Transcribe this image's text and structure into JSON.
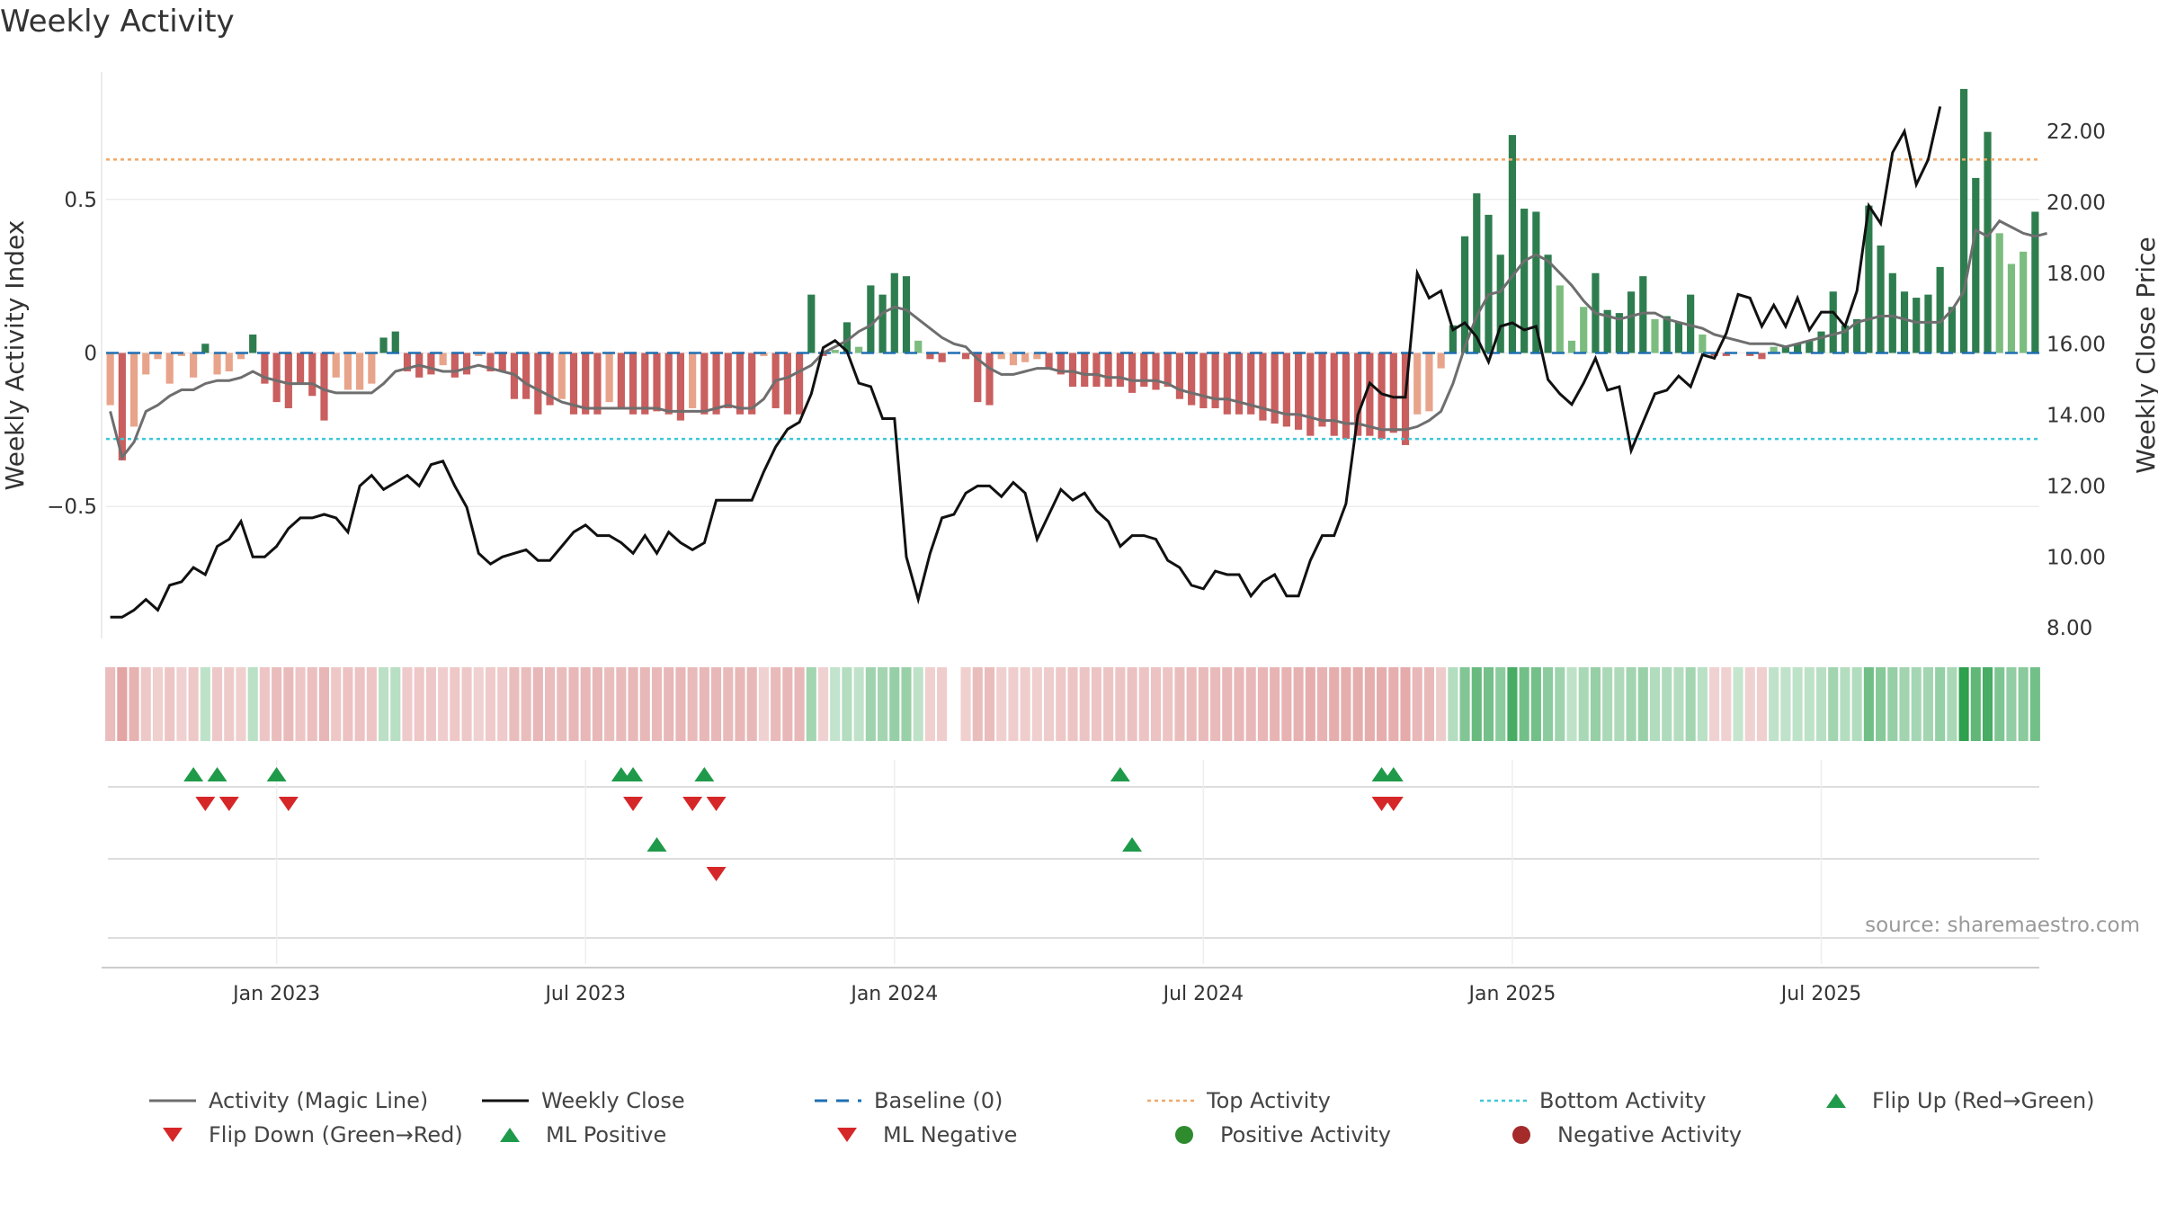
{
  "title": "Weekly Activity",
  "source": "source: sharemaestro.com",
  "colors": {
    "pos_dark": "#2e7d4f",
    "pos_light": "#7cbd7f",
    "neg_dark": "#c95f5f",
    "neg_light": "#e8a48b",
    "close": "#111111",
    "magic": "#6e6e6e",
    "baseline": "#1f6fb2",
    "top": "#f0a868",
    "bottom": "#3cc8d8",
    "up_marker": "#1f9a4a",
    "down_marker": "#d62728"
  },
  "legend": [
    [
      {
        "label": "Activity (Magic Line)",
        "kind": "line",
        "color": "#6e6e6e"
      },
      {
        "label": "Weekly Close",
        "kind": "line",
        "color": "#111111"
      },
      {
        "label": "Baseline (0)",
        "kind": "dash",
        "color": "#1f6fb2"
      },
      {
        "label": "Top Activity",
        "kind": "dot",
        "color": "#f0a868"
      },
      {
        "label": "Bottom Activity",
        "kind": "dot",
        "color": "#3cc8d8"
      },
      {
        "label": "Flip Up (Red→Green)",
        "kind": "up",
        "color": "#1f9a4a"
      }
    ],
    [
      {
        "label": "Flip Down (Green→Red)",
        "kind": "down",
        "color": "#d62728"
      },
      {
        "label": "ML Positive",
        "kind": "up",
        "color": "#1f9a4a"
      },
      {
        "label": "ML Negative",
        "kind": "down",
        "color": "#d62728"
      },
      {
        "label": "Positive Activity",
        "kind": "circle",
        "color": "#2e8b2e"
      },
      {
        "label": "Negative Activity",
        "kind": "circle",
        "color": "#a52a2a"
      }
    ]
  ],
  "chart_data": {
    "type": "bar",
    "title": "Weekly Activity",
    "ylabel": "Weekly Activity Index",
    "y2label": "Weekly Close Price",
    "ylim": [
      -0.93,
      0.93
    ],
    "y2lim": [
      7.7,
      23.8
    ],
    "yticks": [
      0.5,
      0,
      -0.5
    ],
    "ytick_labels": [
      "0.5",
      "0",
      "−0.5"
    ],
    "y2ticks": [
      8,
      10,
      12,
      14,
      16,
      18,
      20,
      22
    ],
    "y2tick_labels": [
      "8.00",
      "10.00",
      "12.00",
      "14.00",
      "16.00",
      "18.00",
      "20.00",
      "22.00"
    ],
    "xticks": [
      {
        "label": "Jan 2023",
        "week": 14
      },
      {
        "label": "Jul 2023",
        "week": 40
      },
      {
        "label": "Jan 2024",
        "week": 66
      },
      {
        "label": "Jul 2024",
        "week": 92
      },
      {
        "label": "Jan 2025",
        "week": 118
      },
      {
        "label": "Jul 2025",
        "week": 144
      }
    ],
    "top_activity": 0.63,
    "bottom_activity": -0.28,
    "gap_weeks": [
      71
    ],
    "activity": [
      -0.17,
      -0.35,
      -0.24,
      -0.07,
      -0.02,
      -0.1,
      -0.01,
      -0.08,
      0.03,
      -0.07,
      -0.06,
      -0.02,
      0.06,
      -0.1,
      -0.16,
      -0.18,
      -0.1,
      -0.14,
      -0.22,
      -0.08,
      -0.12,
      -0.12,
      -0.1,
      0.05,
      0.07,
      -0.06,
      -0.08,
      -0.07,
      -0.04,
      -0.08,
      -0.07,
      -0.01,
      -0.06,
      -0.06,
      -0.15,
      -0.15,
      -0.2,
      -0.17,
      -0.15,
      -0.2,
      -0.2,
      -0.2,
      -0.16,
      -0.18,
      -0.2,
      -0.2,
      -0.19,
      -0.2,
      -0.22,
      -0.18,
      -0.2,
      -0.2,
      -0.18,
      -0.2,
      -0.2,
      -0.01,
      -0.18,
      -0.2,
      -0.2,
      0.19,
      -0.01,
      0.01,
      0.1,
      0.02,
      0.22,
      0.19,
      0.26,
      0.25,
      0.04,
      -0.02,
      -0.03,
      -0.03,
      -0.02,
      -0.16,
      -0.17,
      -0.02,
      -0.04,
      -0.03,
      -0.02,
      -0.05,
      -0.07,
      -0.11,
      -0.11,
      -0.11,
      -0.11,
      -0.11,
      -0.13,
      -0.11,
      -0.12,
      -0.11,
      -0.15,
      -0.17,
      -0.18,
      -0.18,
      -0.2,
      -0.2,
      -0.2,
      -0.22,
      -0.23,
      -0.24,
      -0.25,
      -0.27,
      -0.24,
      -0.27,
      -0.28,
      -0.27,
      -0.27,
      -0.28,
      -0.26,
      -0.3,
      -0.2,
      -0.19,
      -0.05,
      0.09,
      0.38,
      0.52,
      0.45,
      0.32,
      0.71,
      0.47,
      0.46,
      0.32,
      0.22,
      0.04,
      0.15,
      0.26,
      0.14,
      0.13,
      0.2,
      0.25,
      0.11,
      0.12,
      0.1,
      0.19,
      0.06,
      -0.01,
      -0.01,
      0.0,
      -0.01,
      -0.02,
      0.02,
      0.02,
      0.03,
      0.04,
      0.07,
      0.2,
      0.09,
      0.11,
      0.48,
      0.35,
      0.26,
      0.2,
      0.18,
      0.19,
      0.28,
      0.15,
      0.86,
      0.57,
      0.72,
      0.39,
      0.29,
      0.33,
      0.46
    ],
    "magic_line": [
      -0.19,
      -0.34,
      -0.29,
      -0.19,
      -0.17,
      -0.14,
      -0.12,
      -0.12,
      -0.1,
      -0.09,
      -0.09,
      -0.08,
      -0.06,
      -0.08,
      -0.09,
      -0.1,
      -0.1,
      -0.1,
      -0.12,
      -0.13,
      -0.13,
      -0.13,
      -0.13,
      -0.1,
      -0.06,
      -0.05,
      -0.04,
      -0.05,
      -0.06,
      -0.06,
      -0.05,
      -0.04,
      -0.05,
      -0.06,
      -0.07,
      -0.1,
      -0.12,
      -0.14,
      -0.16,
      -0.17,
      -0.18,
      -0.18,
      -0.18,
      -0.18,
      -0.18,
      -0.18,
      -0.18,
      -0.19,
      -0.19,
      -0.19,
      -0.19,
      -0.18,
      -0.17,
      -0.18,
      -0.18,
      -0.15,
      -0.09,
      -0.08,
      -0.06,
      -0.04,
      0.0,
      0.02,
      0.04,
      0.07,
      0.09,
      0.13,
      0.15,
      0.14,
      0.11,
      0.08,
      0.05,
      0.03,
      0.02,
      -0.02,
      -0.05,
      -0.07,
      -0.07,
      -0.06,
      -0.05,
      -0.05,
      -0.06,
      -0.06,
      -0.07,
      -0.07,
      -0.08,
      -0.08,
      -0.09,
      -0.09,
      -0.09,
      -0.1,
      -0.12,
      -0.13,
      -0.14,
      -0.15,
      -0.15,
      -0.16,
      -0.17,
      -0.18,
      -0.19,
      -0.2,
      -0.2,
      -0.21,
      -0.22,
      -0.22,
      -0.23,
      -0.23,
      -0.24,
      -0.25,
      -0.25,
      -0.25,
      -0.24,
      -0.22,
      -0.19,
      -0.1,
      0.02,
      0.12,
      0.19,
      0.2,
      0.25,
      0.3,
      0.32,
      0.3,
      0.26,
      0.22,
      0.17,
      0.13,
      0.12,
      0.11,
      0.12,
      0.13,
      0.13,
      0.11,
      0.1,
      0.09,
      0.08,
      0.06,
      0.05,
      0.04,
      0.03,
      0.03,
      0.03,
      0.02,
      0.03,
      0.04,
      0.05,
      0.06,
      0.07,
      0.1,
      0.11,
      0.12,
      0.12,
      0.11,
      0.1,
      0.1,
      0.1,
      0.14,
      0.2,
      0.4,
      0.38,
      0.43,
      0.41,
      0.39,
      0.38,
      0.39
    ],
    "weekly_close": [
      8.3,
      8.3,
      8.5,
      8.8,
      8.5,
      9.2,
      9.3,
      9.7,
      9.5,
      10.3,
      10.5,
      11.0,
      10.0,
      10.0,
      10.3,
      10.8,
      11.1,
      11.1,
      11.2,
      11.1,
      10.7,
      12.0,
      12.3,
      11.9,
      12.1,
      12.3,
      12.0,
      12.6,
      12.7,
      12.0,
      11.4,
      10.1,
      9.8,
      10.0,
      10.1,
      10.2,
      9.9,
      9.9,
      10.3,
      10.7,
      10.9,
      10.6,
      10.6,
      10.4,
      10.1,
      10.6,
      10.1,
      10.7,
      10.4,
      10.2,
      10.4,
      11.6,
      11.6,
      11.6,
      11.6,
      12.4,
      13.1,
      13.6,
      13.8,
      14.6,
      15.9,
      16.1,
      15.8,
      14.9,
      14.8,
      13.9,
      13.9,
      10.0,
      8.8,
      10.1,
      11.1,
      11.2,
      11.8,
      12.0,
      12.0,
      11.7,
      12.1,
      11.8,
      10.5,
      11.2,
      11.9,
      11.6,
      11.8,
      11.3,
      11.0,
      10.3,
      10.6,
      10.6,
      10.5,
      9.9,
      9.7,
      9.2,
      9.1,
      9.6,
      9.5,
      9.5,
      8.9,
      9.3,
      9.5,
      8.9,
      8.9,
      9.9,
      10.6,
      10.6,
      11.5,
      14.0,
      14.9,
      14.6,
      14.5,
      14.5,
      18.0,
      17.3,
      17.5,
      16.4,
      16.6,
      16.2,
      15.5,
      16.5,
      16.6,
      16.4,
      16.5,
      15.0,
      14.6,
      14.3,
      14.9,
      15.6,
      14.7,
      14.8,
      13.0,
      13.8,
      14.6,
      14.7,
      15.1,
      14.8,
      15.7,
      15.6,
      16.3,
      17.4,
      17.3,
      16.5,
      17.1,
      16.5,
      17.3,
      16.4,
      16.9,
      16.9,
      16.5,
      17.5,
      19.9,
      19.4,
      21.4,
      22.0,
      20.5,
      21.2,
      22.7
    ],
    "flip_up_weeks": [
      7,
      9,
      14,
      43,
      44,
      50,
      85,
      107,
      108
    ],
    "flip_down_weeks": [
      8,
      10,
      15,
      44,
      49,
      51,
      107,
      108
    ],
    "ml_positive_weeks": [
      46,
      86
    ],
    "ml_negative_weeks": [
      51
    ]
  }
}
